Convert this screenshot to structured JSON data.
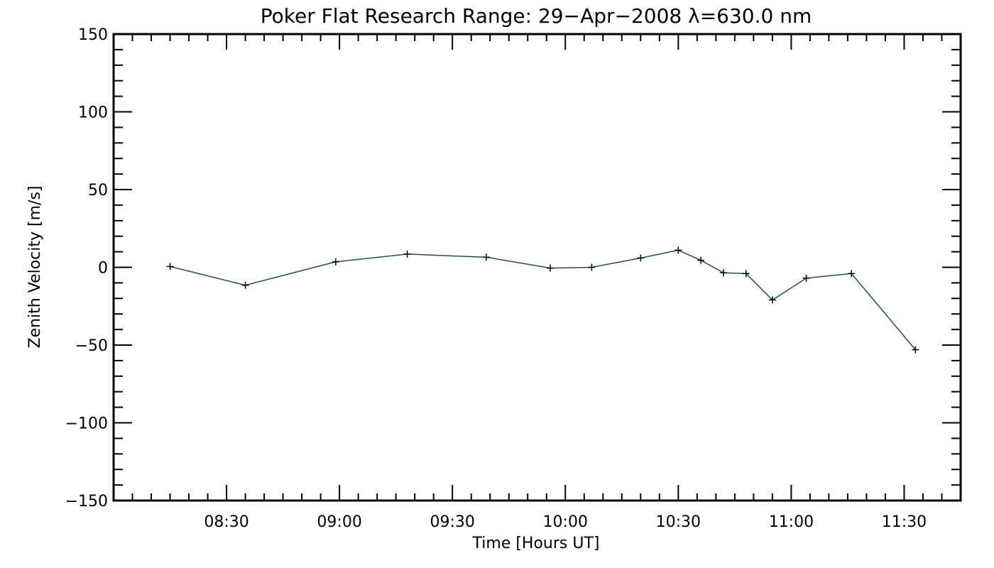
{
  "chart_data": {
    "type": "line",
    "title": "Poker Flat Research Range: 29−Apr−2008 λ=630.0 nm",
    "xlabel": "Time [Hours UT]",
    "ylabel": "Zenith Velocity [m/s]",
    "xlim": [
      "08:00",
      "11:45"
    ],
    "ylim": [
      -150,
      150
    ],
    "x_ticks": [
      "08:30",
      "09:00",
      "09:30",
      "10:00",
      "10:30",
      "11:00",
      "11:30"
    ],
    "y_ticks": [
      150,
      100,
      50,
      0,
      -50,
      -100,
      -150
    ],
    "y_tick_labels": [
      "150",
      "100",
      "50",
      "0",
      "−50",
      "−100",
      "−150"
    ],
    "grid": false,
    "series": [
      {
        "color": "#1f4e5a",
        "marker": "plus",
        "x": [
          "08:15",
          "08:35",
          "08:59",
          "09:18",
          "09:39",
          "09:56",
          "10:07",
          "10:20",
          "10:30",
          "10:36",
          "10:42",
          "10:48",
          "10:55",
          "11:04",
          "11:16",
          "11:33"
        ],
        "values": [
          0.5,
          -11.5,
          3.5,
          8.5,
          6.5,
          -0.5,
          0,
          6,
          11,
          4.5,
          -3.5,
          -4,
          -21,
          -7,
          -4,
          -53
        ]
      }
    ]
  }
}
